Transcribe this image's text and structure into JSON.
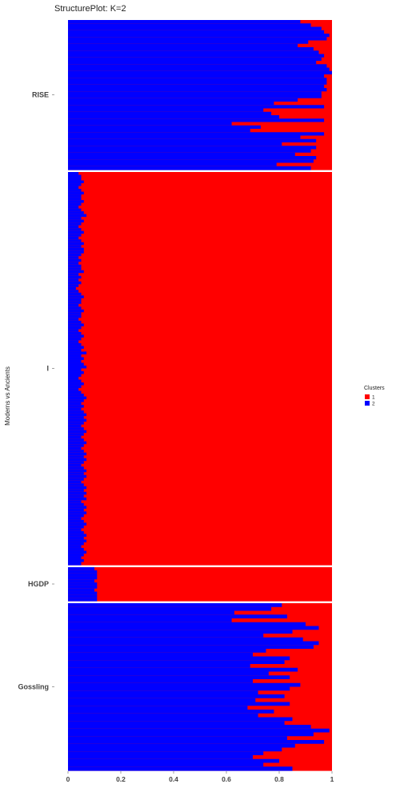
{
  "chart_data": {
    "type": "bar",
    "orientation": "horizontal",
    "stacked": true,
    "title": "StructurePlot: K=2",
    "ylabel": "Moderns vs Ancients",
    "xlabel": "",
    "xlim": [
      0,
      1
    ],
    "x_ticks": [
      "0",
      "0.2",
      "0.4",
      "0.6",
      "0.8",
      "1"
    ],
    "grid": false,
    "legend": {
      "title": "Clusters",
      "position": "right",
      "entries": [
        {
          "label": "1",
          "color": "#ff0000"
        },
        {
          "label": "2",
          "color": "#0000ff"
        }
      ]
    },
    "series_colors": {
      "cluster1": "#ff0000",
      "cluster2": "#0000ff"
    },
    "groups": [
      {
        "name": "RISE",
        "cluster2_fraction": [
          0.88,
          0.92,
          0.96,
          0.97,
          0.99,
          0.98,
          0.91,
          0.87,
          0.93,
          0.95,
          0.97,
          0.96,
          0.94,
          0.98,
          0.99,
          1.0,
          0.97,
          0.98,
          0.98,
          0.97,
          0.98,
          0.96,
          0.96,
          0.87,
          0.78,
          0.97,
          0.74,
          0.77,
          0.8,
          0.97,
          0.62,
          0.73,
          0.69,
          0.97,
          0.88,
          0.94,
          0.81,
          0.94,
          0.92,
          0.86,
          0.94,
          0.93,
          0.79,
          0.92
        ]
      },
      {
        "name": "I",
        "cluster2_fraction": [
          0.04,
          0.05,
          0.05,
          0.06,
          0.05,
          0.04,
          0.05,
          0.06,
          0.05,
          0.05,
          0.06,
          0.05,
          0.04,
          0.05,
          0.06,
          0.07,
          0.05,
          0.06,
          0.05,
          0.04,
          0.05,
          0.06,
          0.05,
          0.04,
          0.05,
          0.06,
          0.05,
          0.06,
          0.06,
          0.05,
          0.04,
          0.05,
          0.04,
          0.05,
          0.05,
          0.06,
          0.04,
          0.05,
          0.04,
          0.05,
          0.04,
          0.03,
          0.04,
          0.05,
          0.06,
          0.05,
          0.05,
          0.04,
          0.05,
          0.06,
          0.05,
          0.05,
          0.04,
          0.05,
          0.06,
          0.05,
          0.04,
          0.05,
          0.06,
          0.05,
          0.04,
          0.05,
          0.06,
          0.05,
          0.07,
          0.05,
          0.06,
          0.05,
          0.06,
          0.07,
          0.05,
          0.06,
          0.05,
          0.04,
          0.05,
          0.06,
          0.05,
          0.04,
          0.05,
          0.06,
          0.07,
          0.06,
          0.05,
          0.06,
          0.05,
          0.06,
          0.07,
          0.06,
          0.07,
          0.06,
          0.05,
          0.06,
          0.07,
          0.06,
          0.05,
          0.06,
          0.07,
          0.06,
          0.05,
          0.06,
          0.07,
          0.06,
          0.07,
          0.06,
          0.05,
          0.06,
          0.07,
          0.06,
          0.07,
          0.06,
          0.05,
          0.06,
          0.07,
          0.06,
          0.07,
          0.06,
          0.07,
          0.05,
          0.06,
          0.07,
          0.06,
          0.07,
          0.06,
          0.05,
          0.06,
          0.07,
          0.06,
          0.05,
          0.06,
          0.07,
          0.06,
          0.07,
          0.06,
          0.05,
          0.06,
          0.07,
          0.06,
          0.05,
          0.06,
          0.05
        ]
      },
      {
        "name": "HGDP",
        "cluster2_fraction": [
          0.1,
          0.11,
          0.11,
          0.11,
          0.1,
          0.11,
          0.11,
          0.1,
          0.11,
          0.11,
          0.11
        ]
      },
      {
        "name": "Gossling",
        "cluster2_fraction": [
          0.81,
          0.77,
          0.63,
          0.83,
          0.62,
          0.9,
          0.95,
          0.85,
          0.74,
          0.89,
          0.95,
          0.93,
          0.75,
          0.7,
          0.84,
          0.82,
          0.69,
          0.87,
          0.76,
          0.84,
          0.7,
          0.88,
          0.84,
          0.72,
          0.82,
          0.71,
          0.84,
          0.68,
          0.78,
          0.72,
          0.85,
          0.82,
          0.92,
          0.99,
          0.93,
          0.83,
          0.97,
          0.86,
          0.81,
          0.74,
          0.7,
          0.8,
          0.74,
          0.85
        ]
      }
    ]
  }
}
